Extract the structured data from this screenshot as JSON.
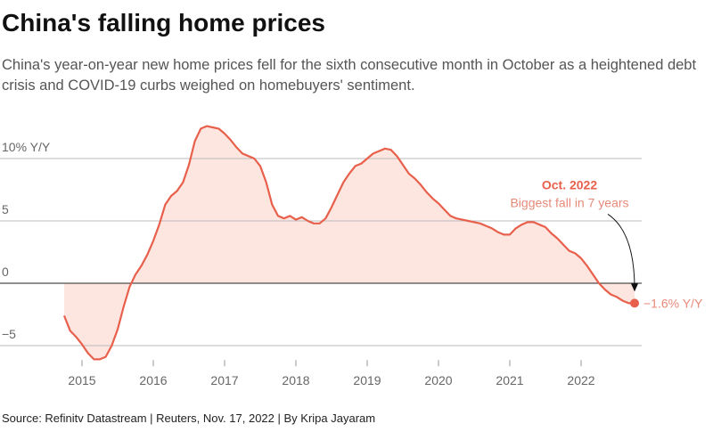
{
  "chart_data": {
    "type": "line",
    "title": "China's falling home prices",
    "subtitle": "China's year-on-year new home prices fell for the sixth consecutive month in October as a heightened debt crisis and COVID-19 curbs weighed on homebuyers' sentiment.",
    "source": "Source: Refinitv Datastream | Reuters, Nov. 17, 2022 | By Kripa Jayaram",
    "x": [
      2014.75,
      2014.833,
      2014.917,
      2015.0,
      2015.083,
      2015.167,
      2015.25,
      2015.333,
      2015.417,
      2015.5,
      2015.583,
      2015.667,
      2015.75,
      2015.833,
      2015.917,
      2016.0,
      2016.083,
      2016.167,
      2016.25,
      2016.333,
      2016.417,
      2016.5,
      2016.583,
      2016.667,
      2016.75,
      2016.833,
      2016.917,
      2017.0,
      2017.083,
      2017.167,
      2017.25,
      2017.333,
      2017.417,
      2017.5,
      2017.583,
      2017.667,
      2017.75,
      2017.833,
      2017.917,
      2018.0,
      2018.083,
      2018.167,
      2018.25,
      2018.333,
      2018.417,
      2018.5,
      2018.583,
      2018.667,
      2018.75,
      2018.833,
      2018.917,
      2019.0,
      2019.083,
      2019.167,
      2019.25,
      2019.333,
      2019.417,
      2019.5,
      2019.583,
      2019.667,
      2019.75,
      2019.833,
      2019.917,
      2020.0,
      2020.083,
      2020.167,
      2020.25,
      2020.333,
      2020.417,
      2020.5,
      2020.583,
      2020.667,
      2020.75,
      2020.833,
      2020.917,
      2021.0,
      2021.083,
      2021.167,
      2021.25,
      2021.333,
      2021.417,
      2021.5,
      2021.583,
      2021.667,
      2021.75,
      2021.833,
      2021.917,
      2022.0,
      2022.083,
      2022.167,
      2022.25,
      2022.333,
      2022.417,
      2022.5,
      2022.583,
      2022.667,
      2022.75
    ],
    "series": [
      {
        "color": "#e8604c",
        "fill": "#fde6e0",
        "values": [
          -2.6,
          -3.8,
          -4.3,
          -4.9,
          -5.6,
          -6.1,
          -6.1,
          -5.9,
          -5.0,
          -3.7,
          -1.9,
          -0.3,
          0.7,
          1.4,
          2.3,
          3.4,
          4.7,
          6.3,
          7.0,
          7.4,
          8.1,
          9.5,
          11.4,
          12.4,
          12.6,
          12.5,
          12.4,
          12.0,
          11.5,
          10.9,
          10.4,
          10.2,
          10.0,
          9.4,
          8.1,
          6.3,
          5.4,
          5.2,
          5.4,
          5.1,
          5.3,
          5.0,
          4.8,
          4.8,
          5.2,
          6.1,
          7.1,
          8.1,
          8.8,
          9.4,
          9.6,
          10.0,
          10.4,
          10.6,
          10.8,
          10.7,
          10.2,
          9.5,
          8.8,
          8.4,
          7.9,
          7.3,
          6.8,
          6.4,
          5.9,
          5.4,
          5.2,
          5.1,
          5.0,
          4.9,
          4.8,
          4.6,
          4.4,
          4.1,
          3.9,
          3.9,
          4.4,
          4.7,
          4.9,
          4.9,
          4.7,
          4.5,
          4.0,
          3.6,
          3.1,
          2.6,
          2.4,
          2.0,
          1.4,
          0.7,
          0.0,
          -0.5,
          -0.9,
          -1.1,
          -1.4,
          -1.6,
          -1.6
        ],
        "value_labels": [
          null,
          null,
          null,
          null,
          null,
          null,
          null,
          null,
          null,
          null,
          null,
          null,
          null,
          null,
          null,
          null,
          null,
          null,
          null,
          null,
          null,
          null,
          null,
          null,
          null,
          null,
          null,
          null,
          null,
          null,
          null,
          null,
          null,
          null,
          null,
          null,
          null,
          null,
          null,
          null,
          null,
          null,
          null,
          null,
          null,
          null,
          null,
          null,
          null,
          null,
          null,
          null,
          null,
          null,
          null,
          null,
          null,
          null,
          null,
          null,
          null,
          null,
          null,
          null,
          null,
          null,
          null,
          null,
          null,
          null,
          null,
          null,
          null,
          null,
          null,
          null,
          null,
          null,
          null,
          null,
          null,
          null,
          null,
          null,
          null,
          null,
          null,
          null,
          null,
          null,
          null,
          null,
          null,
          null,
          null,
          null,
          "−1.6% Y/Y"
        ]
      }
    ],
    "annotation": {
      "title": "Oct. 2022",
      "text": "Biggest fall in 7 years"
    },
    "xlim": [
      2013.85,
      2022.85
    ],
    "ylim": [
      -6.3,
      13.5
    ],
    "xticks": [
      2015,
      2016,
      2017,
      2018,
      2019,
      2020,
      2021,
      2022
    ],
    "yticks": [
      {
        "value": 10,
        "label": "10% Y/Y"
      },
      5,
      0,
      {
        "value": -5,
        "label": "−5"
      }
    ],
    "grid": true
  }
}
